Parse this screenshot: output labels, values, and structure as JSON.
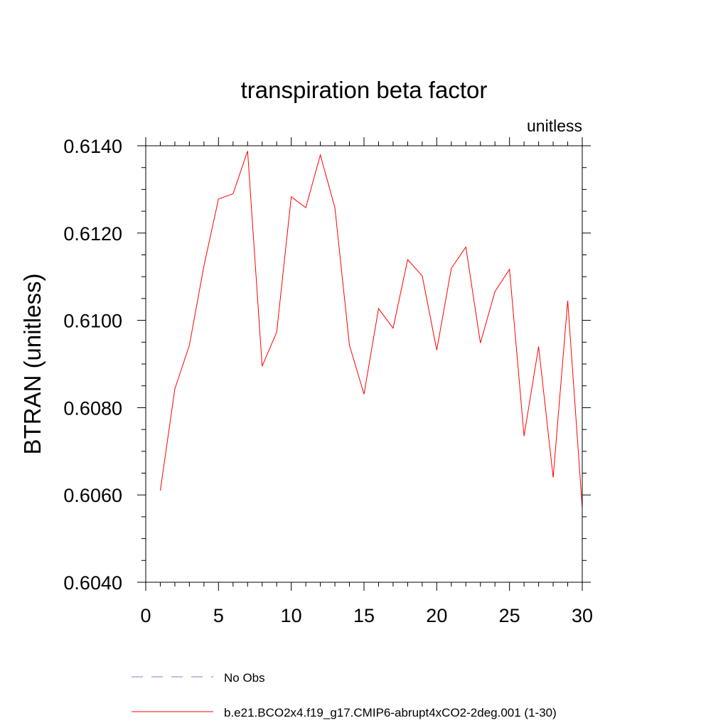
{
  "chart_data": {
    "type": "line",
    "title": "transpiration beta factor",
    "subtitle_right": "unitless",
    "xlabel": "",
    "ylabel": "BTRAN  (unitless)",
    "xlim": [
      0,
      30
    ],
    "ylim": [
      0.604,
      0.614
    ],
    "xticks": [
      0,
      5,
      10,
      15,
      20,
      25,
      30
    ],
    "xtick_labels": [
      "0",
      "5",
      "10",
      "15",
      "20",
      "25",
      "30"
    ],
    "yticks": [
      0.604,
      0.606,
      0.608,
      0.61,
      0.612,
      0.614
    ],
    "ytick_labels": [
      "0.6040",
      "0.6060",
      "0.6080",
      "0.6100",
      "0.6120",
      "0.6140"
    ],
    "grid": false,
    "legend_position": "bottom",
    "series": [
      {
        "name": "No Obs",
        "color": "#8a7fc4",
        "dash": "dashed",
        "x": [],
        "values": []
      },
      {
        "name": "b.e21.BCO2x4.f19_g17.CMIP6-abrupt4xCO2-2deg.001 (1-30)",
        "color": "#ff0000",
        "dash": "solid",
        "x": [
          1,
          2,
          3,
          4,
          5,
          6,
          7,
          8,
          9,
          10,
          11,
          12,
          13,
          14,
          15,
          16,
          17,
          18,
          19,
          20,
          21,
          22,
          23,
          24,
          25,
          26,
          27,
          28,
          29,
          30
        ],
        "values": [
          0.6061,
          0.60843,
          0.60943,
          0.61125,
          0.61278,
          0.6129,
          0.61388,
          0.60895,
          0.60973,
          0.61283,
          0.61258,
          0.61379,
          0.61258,
          0.60943,
          0.60831,
          0.61027,
          0.60982,
          0.61139,
          0.61102,
          0.60932,
          0.61119,
          0.61168,
          0.60948,
          0.61066,
          0.61117,
          0.60735,
          0.6094,
          0.6064,
          0.61045,
          0.6057
        ]
      }
    ]
  }
}
